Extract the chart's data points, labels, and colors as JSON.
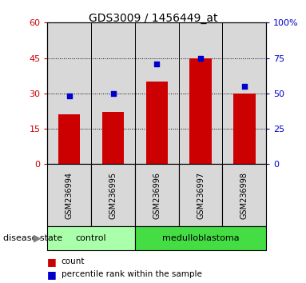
{
  "title": "GDS3009 / 1456449_at",
  "samples": [
    "GSM236994",
    "GSM236995",
    "GSM236996",
    "GSM236997",
    "GSM236998"
  ],
  "counts": [
    21,
    22,
    35,
    45,
    30
  ],
  "percentiles": [
    48,
    50,
    71,
    75,
    55
  ],
  "left_ylim": [
    0,
    60
  ],
  "right_ylim": [
    0,
    100
  ],
  "left_yticks": [
    0,
    15,
    30,
    45,
    60
  ],
  "right_yticks": [
    0,
    25,
    50,
    75,
    100
  ],
  "left_ytick_labels": [
    "0",
    "15",
    "30",
    "45",
    "60"
  ],
  "right_ytick_labels": [
    "0",
    "25",
    "50",
    "75",
    "100%"
  ],
  "bar_color": "#cc0000",
  "dot_color": "#0000cc",
  "bar_width": 0.5,
  "groups": [
    {
      "label": "control",
      "indices": [
        0,
        1
      ],
      "color": "#aaffaa"
    },
    {
      "label": "medulloblastoma",
      "indices": [
        2,
        3,
        4
      ],
      "color": "#44dd44"
    }
  ],
  "disease_label": "disease state",
  "legend_count": "count",
  "legend_pct": "percentile rank within the sample",
  "tick_label_color_left": "#cc0000",
  "tick_label_color_right": "#0000cc",
  "title_fontsize": 10,
  "axis_bg_color": "#d8d8d8"
}
